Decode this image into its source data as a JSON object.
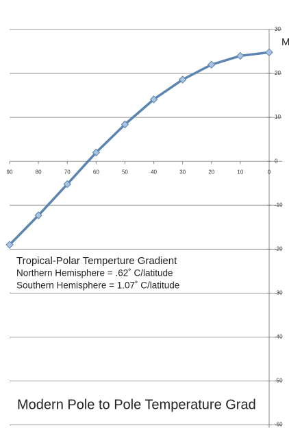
{
  "chart_data": {
    "type": "line",
    "title": "Modern Pole to Pole Temperature Grad",
    "legend_fragment": "M",
    "annotations": [
      "Tropical-Polar Temperture Gradient",
      "Northern Hemisphere = .62˚ C/latitude",
      "Southern Hemisphere = 1.07˚ C/latitude"
    ],
    "x": [
      90,
      80,
      70,
      60,
      50,
      40,
      30,
      20,
      10,
      0
    ],
    "series": [
      {
        "name": "M",
        "color": "#5b84b0",
        "values": [
          -19,
          -12.3,
          -5.2,
          2,
          8.4,
          14.1,
          18.6,
          22,
          24,
          24.8
        ]
      }
    ],
    "xlim": [
      90,
      0
    ],
    "xticks": [
      90,
      80,
      70,
      60,
      50,
      40,
      30,
      20,
      10,
      0
    ],
    "ylim": [
      -60,
      30
    ],
    "yticks": [
      30,
      20,
      10,
      0,
      -10,
      -20,
      -30,
      -40,
      -50,
      -60
    ],
    "grid": true
  }
}
